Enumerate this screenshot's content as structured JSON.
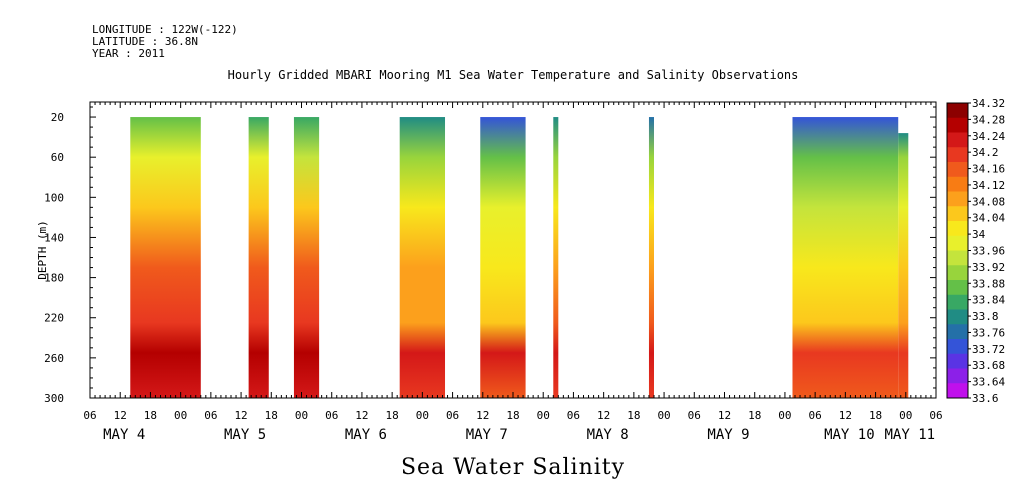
{
  "header": {
    "longitude": "LONGITUDE : 122W(-122)",
    "latitude": "LATITUDE : 36.8N",
    "year": "YEAR : 2011"
  },
  "chart_data": {
    "type": "heatmap",
    "title": "Hourly Gridded MBARI Mooring M1 Sea Water Temperature and Salinity Observations",
    "xlabel": "Sea Water Salinity",
    "ylabel": "DEPTH (m)",
    "x_units": "hours since 2011-05-04 00:00",
    "xlim": [
      6,
      174
    ],
    "ylim": [
      300,
      5
    ],
    "x_tick_labels": [
      "06",
      "12",
      "18",
      "00",
      "06",
      "12",
      "18",
      "00",
      "06",
      "12",
      "18",
      "00",
      "06",
      "12",
      "18",
      "00",
      "06",
      "12",
      "18",
      "00",
      "06",
      "12",
      "18",
      "00",
      "06",
      "12",
      "18",
      "00",
      "06"
    ],
    "x_day_labels": [
      {
        "label": "MAY  4",
        "hour": 12
      },
      {
        "label": "MAY  5",
        "hour": 36
      },
      {
        "label": "MAY  6",
        "hour": 60
      },
      {
        "label": "MAY  7",
        "hour": 84
      },
      {
        "label": "MAY  8",
        "hour": 108
      },
      {
        "label": "MAY  9",
        "hour": 132
      },
      {
        "label": "MAY 10",
        "hour": 156
      },
      {
        "label": "MAY 11",
        "hour": 168
      }
    ],
    "y_ticks": [
      20,
      60,
      100,
      140,
      180,
      220,
      260,
      300
    ],
    "colorbar": {
      "min": 33.6,
      "max": 34.32,
      "labels": [
        "34.32",
        "34.28",
        "34.24",
        "34.2",
        "34.16",
        "34.12",
        "34.08",
        "34.04",
        "34",
        "33.96",
        "33.92",
        "33.88",
        "33.84",
        "33.8",
        "33.76",
        "33.72",
        "33.68",
        "33.64",
        "33.6"
      ],
      "colors": [
        "#8c0000",
        "#b40000",
        "#d41818",
        "#e83820",
        "#f05a1c",
        "#f87c14",
        "#fca01c",
        "#fcc81c",
        "#f8e81c",
        "#e8f02c",
        "#c4e43c",
        "#98d43c",
        "#64c048",
        "#38a864",
        "#208c84",
        "#2470a8",
        "#3454d8",
        "#5a34e4",
        "#8c20e8",
        "#c010ec"
      ]
    },
    "segments": [
      {
        "x_start": 14,
        "x_end": 28,
        "top_depth": 20,
        "top": 33.86,
        "mid": 34.06,
        "deep": 34.2,
        "bottom": 34.27
      },
      {
        "x_start": 37.5,
        "x_end": 41.5,
        "top_depth": 20,
        "top": 33.84,
        "mid": 34.06,
        "deep": 34.18,
        "bottom": 34.26
      },
      {
        "x_start": 46.5,
        "x_end": 51.5,
        "top_depth": 20,
        "top": 33.82,
        "mid": 34.05,
        "deep": 34.18,
        "bottom": 34.26
      },
      {
        "x_start": 67.5,
        "x_end": 76.5,
        "top_depth": 20,
        "top": 33.78,
        "mid": 34.0,
        "deep": 34.1,
        "bottom": 34.24
      },
      {
        "x_start": 83.5,
        "x_end": 92.5,
        "top_depth": 20,
        "top": 33.74,
        "mid": 33.96,
        "deep": 34.06,
        "bottom": 34.22
      },
      {
        "x_start": 98,
        "x_end": 99,
        "top_depth": 20,
        "top": 33.78,
        "mid": 34.0,
        "deep": 34.14,
        "bottom": 34.22
      },
      {
        "x_start": 117,
        "x_end": 118,
        "top_depth": 20,
        "top": 33.76,
        "mid": 34.0,
        "deep": 34.14,
        "bottom": 34.22
      },
      {
        "x_start": 145.5,
        "x_end": 166.5,
        "top_depth": 20,
        "top": 33.74,
        "mid": 33.94,
        "deep": 34.06,
        "bottom": 34.2
      },
      {
        "x_start": 166.5,
        "x_end": 168.5,
        "top_depth": 36,
        "top": 33.8,
        "mid": 33.96,
        "deep": 34.08,
        "bottom": 34.2
      }
    ]
  }
}
